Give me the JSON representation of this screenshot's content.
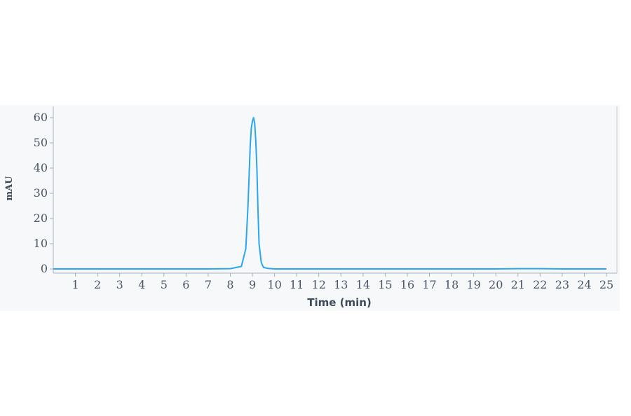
{
  "chart_data": {
    "type": "line",
    "xlabel": "Time (min)",
    "ylabel": "mAU",
    "xlim": [
      0,
      25
    ],
    "ylim": [
      -1.5,
      65
    ],
    "x_ticks": [
      1,
      2,
      3,
      4,
      5,
      6,
      7,
      8,
      9,
      10,
      11,
      12,
      13,
      14,
      15,
      16,
      17,
      18,
      19,
      20,
      21,
      22,
      23,
      24,
      25
    ],
    "y_ticks": [
      0,
      10,
      20,
      30,
      40,
      50,
      60
    ],
    "grid": false,
    "line_color": "#2aa6f0",
    "series": [
      {
        "x": [
          0,
          1,
          2,
          3,
          4,
          5,
          6,
          7,
          8,
          8.5,
          8.7,
          8.8,
          8.9,
          8.95,
          9.0,
          9.05,
          9.1,
          9.15,
          9.2,
          9.25,
          9.3,
          9.4,
          9.5,
          9.7,
          10,
          11,
          12,
          13,
          14,
          15,
          16,
          17,
          18,
          19,
          20,
          21,
          22,
          23,
          24,
          25
        ],
        "y": [
          0,
          0,
          0,
          0,
          0,
          0,
          0,
          0,
          0.1,
          1.0,
          8.0,
          25.0,
          49.0,
          56.0,
          58.5,
          60.0,
          58.0,
          51.0,
          40.0,
          24.0,
          10.0,
          2.5,
          0.6,
          0.2,
          0,
          0,
          0,
          0,
          0,
          0,
          0,
          0,
          0,
          0,
          0,
          0.1,
          0.1,
          0,
          0,
          0
        ]
      }
    ]
  }
}
